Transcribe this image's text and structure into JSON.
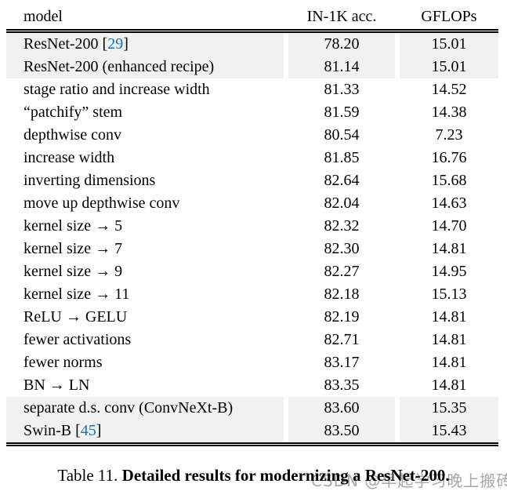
{
  "colors": {
    "reference_blue": "#0f75bc",
    "row_highlight": "#f1f1f1",
    "watermark_gray": "#a8a8a8",
    "rule_black": "#000000",
    "background": "#ffffff"
  },
  "table": {
    "columns": [
      "model",
      "IN-1K acc.",
      "GFLOPs"
    ],
    "rows": [
      {
        "prefix": "ResNet-200 [",
        "ref": "29",
        "suffix": "]",
        "acc": "78.20",
        "gflops": "15.01",
        "hl": true
      },
      {
        "prefix": "ResNet-200 (enhanced recipe)",
        "ref": "",
        "suffix": "",
        "acc": "81.14",
        "gflops": "15.01",
        "hl": true
      },
      {
        "prefix": "stage ratio and increase width",
        "ref": "",
        "suffix": "",
        "acc": "81.33",
        "gflops": "14.52",
        "hl": false
      },
      {
        "prefix": "“patchify” stem",
        "ref": "",
        "suffix": "",
        "acc": "81.59",
        "gflops": "14.38",
        "hl": false
      },
      {
        "prefix": "depthwise conv",
        "ref": "",
        "suffix": "",
        "acc": "80.54",
        "gflops": "7.23",
        "hl": false
      },
      {
        "prefix": "increase width",
        "ref": "",
        "suffix": "",
        "acc": "81.85",
        "gflops": "16.76",
        "hl": false
      },
      {
        "prefix": "inverting dimensions",
        "ref": "",
        "suffix": "",
        "acc": "82.64",
        "gflops": "15.68",
        "hl": false
      },
      {
        "prefix": "move up depthwise conv",
        "ref": "",
        "suffix": "",
        "acc": "82.04",
        "gflops": "14.63",
        "hl": false
      },
      {
        "prefix": "kernel size → 5",
        "ref": "",
        "suffix": "",
        "acc": "82.32",
        "gflops": "14.70",
        "hl": false
      },
      {
        "prefix": "kernel size → 7",
        "ref": "",
        "suffix": "",
        "acc": "82.30",
        "gflops": "14.81",
        "hl": false
      },
      {
        "prefix": "kernel size → 9",
        "ref": "",
        "suffix": "",
        "acc": "82.27",
        "gflops": "14.95",
        "hl": false
      },
      {
        "prefix": "kernel size → 11",
        "ref": "",
        "suffix": "",
        "acc": "82.18",
        "gflops": "15.13",
        "hl": false
      },
      {
        "prefix": "ReLU → GELU",
        "ref": "",
        "suffix": "",
        "acc": "82.19",
        "gflops": "14.81",
        "hl": false
      },
      {
        "prefix": "fewer activations",
        "ref": "",
        "suffix": "",
        "acc": "82.71",
        "gflops": "14.81",
        "hl": false
      },
      {
        "prefix": "fewer norms",
        "ref": "",
        "suffix": "",
        "acc": "83.17",
        "gflops": "14.81",
        "hl": false
      },
      {
        "prefix": "BN → LN",
        "ref": "",
        "suffix": "",
        "acc": "83.35",
        "gflops": "14.81",
        "hl": false
      },
      {
        "prefix": "separate d.s. conv (ConvNeXt-B)",
        "ref": "",
        "suffix": "",
        "acc": "83.60",
        "gflops": "15.35",
        "hl": true
      },
      {
        "prefix": "Swin-B [",
        "ref": "45",
        "suffix": "]",
        "acc": "83.50",
        "gflops": "15.43",
        "hl": true
      }
    ]
  },
  "caption": {
    "label": "Table 11. ",
    "text": "Detailed results for modernizing a ResNet-200."
  },
  "watermark": {
    "text": "CSDN @早起学习晚上搬砖"
  }
}
